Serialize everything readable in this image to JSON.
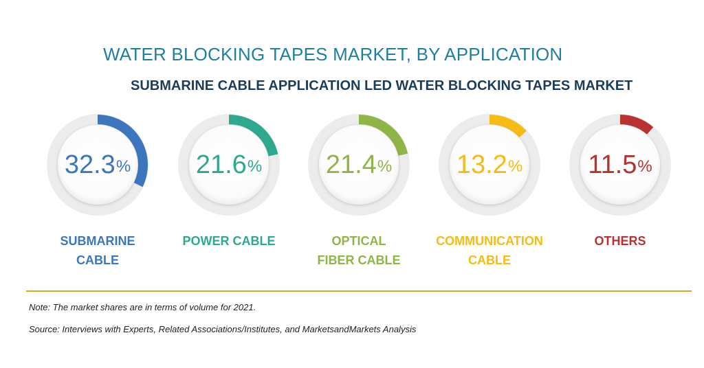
{
  "title": "WATER BLOCKING TAPES MARKET, BY APPLICATION",
  "subtitle": "SUBMARINE CABLE APPLICATION LED WATER BLOCKING TAPES MARKET",
  "chart_data": {
    "type": "pie",
    "title": "WATER BLOCKING TAPES MARKET, BY APPLICATION",
    "unit": "%",
    "categories": [
      "SUBMARINE CABLE",
      "POWER CABLE",
      "OPTICAL FIBER CABLE",
      "COMMUNICATION CABLE",
      "OTHERS"
    ],
    "values": [
      32.3,
      21.6,
      21.4,
      13.2,
      11.5
    ],
    "items": [
      {
        "value": "32.3",
        "value_number": 32.3,
        "label_lines": [
          "SUBMARINE",
          "CABLE"
        ],
        "color": "#3c76bd"
      },
      {
        "value": "21.6",
        "value_number": 21.6,
        "label_lines": [
          "POWER CABLE"
        ],
        "color": "#2ea98f"
      },
      {
        "value": "21.4",
        "value_number": 21.4,
        "label_lines": [
          "OPTICAL",
          "FIBER CABLE"
        ],
        "color": "#8fb547"
      },
      {
        "value": "13.2",
        "value_number": 13.2,
        "label_lines": [
          "COMMUNICATION",
          "CABLE"
        ],
        "color": "#f7bb16"
      },
      {
        "value": "11.5",
        "value_number": 11.5,
        "label_lines": [
          "OTHERS"
        ],
        "color": "#b83232"
      }
    ]
  },
  "note": "Note: The market shares are in terms of volume for 2021.",
  "source": "Source: Interviews with Experts, Related Associations/Institutes, and MarketsandMarkets Analysis",
  "colors": {
    "title": "#1f7fa3",
    "subtitle": "#1c3d5a",
    "divider": "#d9a91b",
    "ring_track": "#ececec"
  }
}
